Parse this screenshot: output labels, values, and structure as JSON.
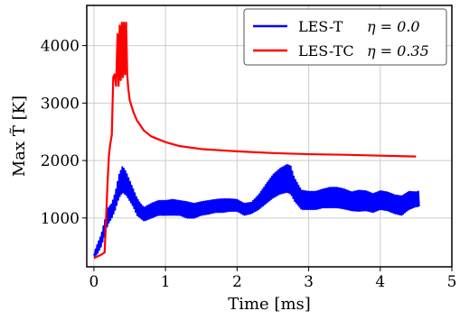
{
  "chart_data": {
    "type": "line",
    "xlabel": "Time [ms]",
    "ylabel": "Max T̃ [K]",
    "xlim": [
      -0.1,
      5.0
    ],
    "ylim": [
      150,
      4700
    ],
    "xticks": [
      0,
      1,
      2,
      3,
      4,
      5
    ],
    "yticks": [
      1000,
      2000,
      3000,
      4000
    ],
    "grid": true,
    "legend_position": "top-right",
    "series": [
      {
        "name": "LES-T",
        "eta_label": "η = 0.0",
        "color": "#0000ff",
        "envelope": [
          [
            0.0,
            320,
            380
          ],
          [
            0.05,
            380,
            550
          ],
          [
            0.1,
            500,
            700
          ],
          [
            0.15,
            700,
            950
          ],
          [
            0.2,
            900,
            1180
          ],
          [
            0.25,
            1000,
            1250
          ],
          [
            0.3,
            1150,
            1450
          ],
          [
            0.35,
            1350,
            1750
          ],
          [
            0.4,
            1450,
            1900
          ],
          [
            0.45,
            1400,
            1800
          ],
          [
            0.5,
            1300,
            1650
          ],
          [
            0.55,
            1200,
            1500
          ],
          [
            0.6,
            1050,
            1350
          ],
          [
            0.65,
            1000,
            1250
          ],
          [
            0.7,
            950,
            1180
          ],
          [
            0.8,
            1000,
            1250
          ],
          [
            0.9,
            1050,
            1300
          ],
          [
            1.0,
            1050,
            1300
          ],
          [
            1.1,
            1050,
            1320
          ],
          [
            1.2,
            1050,
            1300
          ],
          [
            1.3,
            1000,
            1280
          ],
          [
            1.4,
            1000,
            1250
          ],
          [
            1.5,
            1050,
            1280
          ],
          [
            1.6,
            1070,
            1300
          ],
          [
            1.7,
            1100,
            1320
          ],
          [
            1.8,
            1100,
            1330
          ],
          [
            1.9,
            1120,
            1330
          ],
          [
            2.0,
            1120,
            1320
          ],
          [
            2.1,
            1050,
            1250
          ],
          [
            2.2,
            1080,
            1270
          ],
          [
            2.3,
            1150,
            1400
          ],
          [
            2.4,
            1250,
            1580
          ],
          [
            2.5,
            1350,
            1750
          ],
          [
            2.6,
            1420,
            1860
          ],
          [
            2.7,
            1450,
            1930
          ],
          [
            2.75,
            1420,
            1900
          ],
          [
            2.8,
            1300,
            1700
          ],
          [
            2.9,
            1150,
            1480
          ],
          [
            3.0,
            1150,
            1460
          ],
          [
            3.1,
            1150,
            1460
          ],
          [
            3.2,
            1180,
            1500
          ],
          [
            3.3,
            1180,
            1530
          ],
          [
            3.4,
            1180,
            1530
          ],
          [
            3.5,
            1160,
            1500
          ],
          [
            3.6,
            1130,
            1450
          ],
          [
            3.7,
            1120,
            1480
          ],
          [
            3.8,
            1130,
            1470
          ],
          [
            3.9,
            1100,
            1420
          ],
          [
            4.0,
            1150,
            1470
          ],
          [
            4.1,
            1130,
            1450
          ],
          [
            4.2,
            1080,
            1400
          ],
          [
            4.3,
            1050,
            1380
          ],
          [
            4.4,
            1150,
            1460
          ],
          [
            4.5,
            1200,
            1450
          ],
          [
            4.55,
            1200,
            1470
          ]
        ]
      },
      {
        "name": "LES-TC",
        "eta_label": "η = 0.35",
        "color": "#ff0000",
        "points": [
          [
            0.0,
            300
          ],
          [
            0.05,
            330
          ],
          [
            0.1,
            360
          ],
          [
            0.15,
            400
          ],
          [
            0.17,
            1000
          ],
          [
            0.19,
            1600
          ],
          [
            0.21,
            2100
          ],
          [
            0.23,
            2300
          ],
          [
            0.25,
            2450
          ],
          [
            0.27,
            3450
          ],
          [
            0.29,
            3500
          ],
          [
            0.31,
            3300
          ],
          [
            0.33,
            4200
          ],
          [
            0.345,
            3300
          ],
          [
            0.36,
            4350
          ],
          [
            0.375,
            3400
          ],
          [
            0.39,
            4400
          ],
          [
            0.405,
            3450
          ],
          [
            0.42,
            4400
          ],
          [
            0.435,
            3500
          ],
          [
            0.45,
            4400
          ],
          [
            0.465,
            3500
          ],
          [
            0.48,
            3250
          ],
          [
            0.5,
            3050
          ],
          [
            0.55,
            2850
          ],
          [
            0.6,
            2700
          ],
          [
            0.7,
            2520
          ],
          [
            0.8,
            2420
          ],
          [
            1.0,
            2320
          ],
          [
            1.2,
            2250
          ],
          [
            1.5,
            2200
          ],
          [
            2.0,
            2160
          ],
          [
            2.5,
            2130
          ],
          [
            3.0,
            2110
          ],
          [
            3.5,
            2100
          ],
          [
            4.0,
            2085
          ],
          [
            4.5,
            2070
          ]
        ]
      }
    ]
  }
}
